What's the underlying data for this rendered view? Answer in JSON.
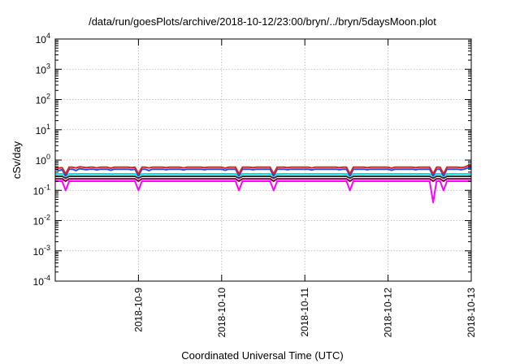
{
  "chart_data": {
    "type": "line",
    "title": "/data/run/goesPlots/archive/2018-10-12/23:00/bryn/../bryn/5daysMoon.plot",
    "xlabel": "Coordinated Universal Time (UTC)",
    "ylabel": "cSv/day",
    "y_scale": "log",
    "ylim": [
      0.0001,
      10000
    ],
    "y_ticks": [
      {
        "value": 0.0001,
        "base": "10",
        "exp": "-4"
      },
      {
        "value": 0.001,
        "base": "10",
        "exp": "-3"
      },
      {
        "value": 0.01,
        "base": "10",
        "exp": "-2"
      },
      {
        "value": 0.1,
        "base": "10",
        "exp": "-1"
      },
      {
        "value": 1,
        "base": "10",
        "exp": "0"
      },
      {
        "value": 10,
        "base": "10",
        "exp": "1"
      },
      {
        "value": 100,
        "base": "10",
        "exp": "2"
      },
      {
        "value": 1000,
        "base": "10",
        "exp": "3"
      },
      {
        "value": 10000,
        "base": "10",
        "exp": "4"
      }
    ],
    "xlim": [
      "2018-10-08T00:00",
      "2018-10-13T00:00"
    ],
    "x_ticks": [
      "2018-10-9",
      "2018-10-10",
      "2018-10-11",
      "2018-10-12",
      "2018-10-13"
    ],
    "grid": true,
    "series": [
      {
        "color": "#ff00ff",
        "values": [
          0.2,
          0.2,
          0.2,
          0.1,
          0.2,
          0.2,
          0.2,
          0.2,
          0.2,
          0.2,
          0.2,
          0.2,
          0.2,
          0.2,
          0.2,
          0.2,
          0.2,
          0.2,
          0.2,
          0.2,
          0.2,
          0.2,
          0.2,
          0.2,
          0.1,
          0.2,
          0.2,
          0.2,
          0.2,
          0.2,
          0.2,
          0.2,
          0.2,
          0.2,
          0.2,
          0.2,
          0.2,
          0.2,
          0.2,
          0.2,
          0.2,
          0.2,
          0.2,
          0.2,
          0.2,
          0.2,
          0.2,
          0.2,
          0.2,
          0.2,
          0.2,
          0.2,
          0.2,
          0.1,
          0.2,
          0.2,
          0.2,
          0.2,
          0.2,
          0.2,
          0.2,
          0.2,
          0.2,
          0.1,
          0.2,
          0.2,
          0.2,
          0.2,
          0.2,
          0.2,
          0.2,
          0.2,
          0.2,
          0.2,
          0.2,
          0.2,
          0.2,
          0.2,
          0.2,
          0.2,
          0.2,
          0.2,
          0.2,
          0.2,
          0.2,
          0.1,
          0.2,
          0.2,
          0.2,
          0.2,
          0.2,
          0.2,
          0.2,
          0.2,
          0.2,
          0.2,
          0.2,
          0.2,
          0.2,
          0.2,
          0.2,
          0.2,
          0.2,
          0.2,
          0.2,
          0.2,
          0.2,
          0.2,
          0.2,
          0.04,
          0.2,
          0.2,
          0.1,
          0.2,
          0.2,
          0.2,
          0.2,
          0.2,
          0.2,
          0.2,
          0.2
        ]
      },
      {
        "color": "#8b0045",
        "values": [
          0.24,
          0.24,
          0.24,
          0.2,
          0.24,
          0.24,
          0.24,
          0.24,
          0.24,
          0.24,
          0.24,
          0.24,
          0.24,
          0.24,
          0.24,
          0.24,
          0.24,
          0.24,
          0.24,
          0.24,
          0.24,
          0.24,
          0.24,
          0.24,
          0.2,
          0.24,
          0.24,
          0.24,
          0.24,
          0.24,
          0.24,
          0.24,
          0.24,
          0.24,
          0.24,
          0.24,
          0.24,
          0.24,
          0.24,
          0.24,
          0.24,
          0.24,
          0.24,
          0.24,
          0.24,
          0.24,
          0.24,
          0.24,
          0.24,
          0.24,
          0.24,
          0.24,
          0.24,
          0.2,
          0.24,
          0.24,
          0.24,
          0.24,
          0.24,
          0.24,
          0.24,
          0.24,
          0.24,
          0.2,
          0.24,
          0.24,
          0.24,
          0.24,
          0.24,
          0.24,
          0.24,
          0.24,
          0.24,
          0.24,
          0.24,
          0.24,
          0.24,
          0.24,
          0.24,
          0.24,
          0.24,
          0.24,
          0.24,
          0.24,
          0.24,
          0.2,
          0.24,
          0.24,
          0.24,
          0.24,
          0.24,
          0.24,
          0.24,
          0.24,
          0.24,
          0.24,
          0.24,
          0.24,
          0.24,
          0.24,
          0.24,
          0.24,
          0.24,
          0.24,
          0.24,
          0.24,
          0.24,
          0.24,
          0.24,
          0.2,
          0.24,
          0.24,
          0.2,
          0.24,
          0.24,
          0.24,
          0.24,
          0.24,
          0.24,
          0.24,
          0.24
        ]
      },
      {
        "color": "#333333",
        "values": [
          0.29,
          0.29,
          0.29,
          0.25,
          0.29,
          0.29,
          0.29,
          0.29,
          0.29,
          0.29,
          0.29,
          0.29,
          0.29,
          0.29,
          0.29,
          0.29,
          0.29,
          0.29,
          0.29,
          0.29,
          0.29,
          0.29,
          0.29,
          0.29,
          0.25,
          0.29,
          0.29,
          0.29,
          0.29,
          0.29,
          0.29,
          0.29,
          0.29,
          0.29,
          0.29,
          0.29,
          0.29,
          0.29,
          0.29,
          0.29,
          0.29,
          0.29,
          0.29,
          0.29,
          0.29,
          0.29,
          0.29,
          0.29,
          0.29,
          0.29,
          0.29,
          0.29,
          0.29,
          0.25,
          0.29,
          0.29,
          0.29,
          0.29,
          0.29,
          0.29,
          0.29,
          0.29,
          0.29,
          0.25,
          0.29,
          0.29,
          0.29,
          0.29,
          0.29,
          0.29,
          0.29,
          0.29,
          0.29,
          0.29,
          0.29,
          0.29,
          0.29,
          0.29,
          0.29,
          0.29,
          0.29,
          0.29,
          0.29,
          0.29,
          0.29,
          0.25,
          0.29,
          0.29,
          0.29,
          0.29,
          0.29,
          0.29,
          0.29,
          0.29,
          0.29,
          0.29,
          0.29,
          0.29,
          0.29,
          0.29,
          0.29,
          0.29,
          0.29,
          0.29,
          0.29,
          0.29,
          0.29,
          0.29,
          0.29,
          0.25,
          0.29,
          0.29,
          0.25,
          0.29,
          0.29,
          0.29,
          0.29,
          0.29,
          0.29,
          0.29,
          0.29
        ]
      },
      {
        "color": "#00e0e0",
        "values": [
          0.35,
          0.35,
          0.35,
          0.3,
          0.35,
          0.35,
          0.35,
          0.35,
          0.35,
          0.35,
          0.35,
          0.35,
          0.35,
          0.35,
          0.35,
          0.35,
          0.35,
          0.35,
          0.35,
          0.35,
          0.35,
          0.35,
          0.35,
          0.35,
          0.3,
          0.35,
          0.35,
          0.35,
          0.35,
          0.35,
          0.35,
          0.35,
          0.35,
          0.35,
          0.35,
          0.35,
          0.35,
          0.35,
          0.35,
          0.35,
          0.35,
          0.35,
          0.35,
          0.35,
          0.35,
          0.35,
          0.35,
          0.35,
          0.35,
          0.35,
          0.35,
          0.35,
          0.35,
          0.3,
          0.35,
          0.35,
          0.35,
          0.35,
          0.35,
          0.35,
          0.35,
          0.35,
          0.35,
          0.3,
          0.35,
          0.35,
          0.35,
          0.35,
          0.35,
          0.35,
          0.35,
          0.35,
          0.35,
          0.35,
          0.35,
          0.35,
          0.35,
          0.35,
          0.35,
          0.35,
          0.35,
          0.35,
          0.35,
          0.35,
          0.35,
          0.3,
          0.35,
          0.35,
          0.35,
          0.35,
          0.35,
          0.35,
          0.35,
          0.35,
          0.35,
          0.35,
          0.35,
          0.35,
          0.35,
          0.35,
          0.35,
          0.35,
          0.35,
          0.35,
          0.35,
          0.35,
          0.35,
          0.35,
          0.35,
          0.3,
          0.35,
          0.35,
          0.3,
          0.35,
          0.35,
          0.35,
          0.35,
          0.35,
          0.35,
          0.35,
          0.35
        ]
      },
      {
        "color": "#1f4fe0",
        "values": [
          0.5,
          0.45,
          0.48,
          0.3,
          0.5,
          0.5,
          0.45,
          0.52,
          0.5,
          0.48,
          0.5,
          0.5,
          0.47,
          0.5,
          0.5,
          0.5,
          0.46,
          0.5,
          0.5,
          0.5,
          0.5,
          0.5,
          0.48,
          0.5,
          0.3,
          0.5,
          0.5,
          0.45,
          0.5,
          0.5,
          0.5,
          0.5,
          0.48,
          0.5,
          0.5,
          0.5,
          0.5,
          0.47,
          0.5,
          0.5,
          0.5,
          0.5,
          0.5,
          0.48,
          0.5,
          0.5,
          0.5,
          0.5,
          0.5,
          0.46,
          0.5,
          0.5,
          0.5,
          0.3,
          0.5,
          0.5,
          0.5,
          0.48,
          0.5,
          0.5,
          0.5,
          0.5,
          0.5,
          0.3,
          0.5,
          0.5,
          0.5,
          0.48,
          0.5,
          0.5,
          0.5,
          0.5,
          0.5,
          0.5,
          0.47,
          0.5,
          0.5,
          0.5,
          0.5,
          0.5,
          0.5,
          0.5,
          0.48,
          0.5,
          0.5,
          0.3,
          0.5,
          0.5,
          0.5,
          0.5,
          0.48,
          0.5,
          0.5,
          0.5,
          0.5,
          0.5,
          0.5,
          0.46,
          0.5,
          0.5,
          0.5,
          0.5,
          0.5,
          0.5,
          0.48,
          0.5,
          0.5,
          0.5,
          0.5,
          0.3,
          0.5,
          0.5,
          0.3,
          0.5,
          0.5,
          0.5,
          0.5,
          0.48,
          0.5,
          0.55,
          0.55
        ]
      },
      {
        "color": "#e02020",
        "values": [
          0.58,
          0.55,
          0.56,
          0.35,
          0.58,
          0.58,
          0.55,
          0.6,
          0.58,
          0.56,
          0.58,
          0.58,
          0.55,
          0.58,
          0.58,
          0.58,
          0.54,
          0.58,
          0.58,
          0.58,
          0.58,
          0.58,
          0.56,
          0.58,
          0.35,
          0.58,
          0.58,
          0.55,
          0.58,
          0.58,
          0.58,
          0.58,
          0.56,
          0.58,
          0.58,
          0.58,
          0.58,
          0.55,
          0.58,
          0.58,
          0.58,
          0.58,
          0.58,
          0.56,
          0.58,
          0.58,
          0.58,
          0.58,
          0.58,
          0.54,
          0.58,
          0.58,
          0.58,
          0.35,
          0.58,
          0.58,
          0.58,
          0.56,
          0.58,
          0.58,
          0.58,
          0.58,
          0.58,
          0.35,
          0.58,
          0.58,
          0.58,
          0.56,
          0.58,
          0.58,
          0.58,
          0.58,
          0.58,
          0.58,
          0.55,
          0.58,
          0.58,
          0.58,
          0.58,
          0.58,
          0.58,
          0.58,
          0.56,
          0.58,
          0.58,
          0.35,
          0.58,
          0.58,
          0.58,
          0.58,
          0.56,
          0.58,
          0.58,
          0.58,
          0.58,
          0.58,
          0.58,
          0.54,
          0.58,
          0.58,
          0.58,
          0.58,
          0.58,
          0.58,
          0.56,
          0.58,
          0.58,
          0.58,
          0.58,
          0.35,
          0.58,
          0.58,
          0.35,
          0.58,
          0.58,
          0.58,
          0.58,
          0.56,
          0.58,
          0.65,
          0.65
        ]
      }
    ]
  }
}
